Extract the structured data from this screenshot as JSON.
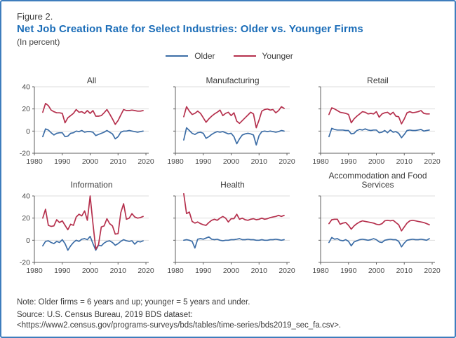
{
  "figure": {
    "label": "Figure 2.",
    "title": "Net Job Creation Rate for Select Industries: Older vs. Younger Firms",
    "subtitle": "(In percent)"
  },
  "legend": {
    "older_label": "Older",
    "younger_label": "Younger"
  },
  "colors": {
    "older": "#3c6da6",
    "younger": "#b5304d",
    "grid": "#dedede",
    "axis": "#5f5f5f",
    "tick_text": "#4a4a4a",
    "border": "#3e7dbd",
    "title_blue": "#1b6db8"
  },
  "footer": {
    "note_line": "Note: Older firms = 6 years and up; younger = 5 years and under.",
    "source_line": "Source: U.S. Census Bureau, 2019 BDS dataset:",
    "url_line": "<https://www2.census.gov/programs-surveys/bds/tables/time-series/bds2019_sec_fa.csv>."
  },
  "chart_data": [
    {
      "type": "line",
      "title": "All",
      "start_year": 1983,
      "end_year": 2019,
      "x_ticks": [
        1980,
        1990,
        2000,
        2010,
        2020
      ],
      "y_ticks": [
        -20,
        0,
        20,
        40
      ],
      "ylim": [
        -20,
        40
      ],
      "show_y_labels": true,
      "series": [
        {
          "name": "Older",
          "color_key": "older",
          "values": [
            -5,
            2,
            1,
            -1.5,
            -3.5,
            -2,
            -1.5,
            -1.5,
            -5,
            -4.5,
            -2,
            -1.5,
            0,
            -0.5,
            0.5,
            -1,
            -0.5,
            -0.5,
            -1,
            -4,
            -3,
            -2,
            -1,
            0.5,
            -1,
            -2.5,
            -7,
            -5,
            -1,
            0,
            0,
            0.5,
            0,
            -0.5,
            -1,
            -0.5,
            0
          ]
        },
        {
          "name": "Younger",
          "color_key": "younger",
          "values": [
            17,
            25,
            23,
            19,
            17.5,
            16.5,
            16.5,
            16,
            7.5,
            12,
            14,
            16,
            19.5,
            17,
            17.5,
            16,
            18.5,
            16,
            18.5,
            13.5,
            13.5,
            14,
            16.5,
            19.5,
            15.5,
            11,
            6,
            9.5,
            14.5,
            19.5,
            18.5,
            18.5,
            19,
            18.5,
            18,
            18,
            18.5
          ]
        }
      ]
    },
    {
      "type": "line",
      "title": "Manufacturing",
      "start_year": 1983,
      "end_year": 2019,
      "x_ticks": [
        1980,
        1990,
        2000,
        2010,
        2020
      ],
      "y_ticks": [
        -20,
        0,
        20,
        40
      ],
      "ylim": [
        -20,
        40
      ],
      "show_y_labels": false,
      "series": [
        {
          "name": "Older",
          "color_key": "older",
          "values": [
            -8,
            3,
            0.5,
            -2,
            -3,
            -1.5,
            -1,
            -2,
            -6.5,
            -5,
            -3,
            -1.5,
            -0.5,
            -1,
            -0.5,
            -1.5,
            -2.5,
            -2,
            -5,
            -11.5,
            -7,
            -3.5,
            -2.5,
            -2,
            -2.5,
            -3.5,
            -12.5,
            -4,
            -0.5,
            0,
            -0.5,
            0,
            -0.5,
            -1,
            -0.5,
            0.5,
            0
          ]
        },
        {
          "name": "Younger",
          "color_key": "younger",
          "values": [
            13,
            22,
            18,
            15,
            16,
            18,
            16,
            12,
            8,
            11,
            13.5,
            15.5,
            17,
            19,
            14,
            16,
            17,
            14,
            16.5,
            9,
            7,
            9.5,
            12,
            14.5,
            17,
            15.5,
            3,
            10,
            18,
            19.5,
            20,
            19,
            19.5,
            16.5,
            18.5,
            22,
            20.5
          ]
        }
      ]
    },
    {
      "type": "line",
      "title": "Retail",
      "start_year": 1983,
      "end_year": 2019,
      "x_ticks": [
        1980,
        1990,
        2000,
        2010,
        2020
      ],
      "y_ticks": [
        -20,
        0,
        20,
        40
      ],
      "ylim": [
        -20,
        40
      ],
      "show_y_labels": false,
      "series": [
        {
          "name": "Older",
          "color_key": "older",
          "values": [
            -5,
            2.5,
            1.5,
            1,
            1,
            1,
            0.5,
            0.5,
            -2.5,
            -2,
            0.5,
            1.5,
            1,
            2,
            1,
            0.5,
            1,
            1,
            -1.5,
            -1,
            0.5,
            -1.5,
            1,
            -1,
            -0.5,
            -2,
            -6,
            -3,
            0.5,
            1,
            0.5,
            0.5,
            1,
            1.5,
            0,
            0.5,
            1
          ]
        },
        {
          "name": "Younger",
          "color_key": "younger",
          "values": [
            15,
            21,
            20,
            18.5,
            17,
            16.5,
            16,
            15,
            7.5,
            11,
            13.5,
            15.5,
            17.5,
            17,
            15.5,
            16,
            15.5,
            17.5,
            12.5,
            15.5,
            16.5,
            17,
            15,
            17,
            13.5,
            13,
            6.5,
            11,
            16.5,
            17.5,
            16.5,
            17,
            17.5,
            18.5,
            16,
            15.5,
            15.5
          ]
        }
      ]
    },
    {
      "type": "line",
      "title": "Information",
      "start_year": 1983,
      "end_year": 2019,
      "x_ticks": [
        1980,
        1990,
        2000,
        2010,
        2020
      ],
      "y_ticks": [
        -20,
        0,
        20,
        40
      ],
      "ylim": [
        -20,
        40
      ],
      "show_y_labels": true,
      "series": [
        {
          "name": "Older",
          "color_key": "older",
          "values": [
            -5,
            -1,
            -0.5,
            -2,
            -3,
            -1,
            -2,
            0.5,
            -3,
            -9,
            -5,
            -2,
            0,
            -1,
            1,
            1.5,
            0.5,
            3.5,
            -3,
            -9,
            -4.5,
            -5,
            -2.5,
            -1,
            -0.5,
            -2,
            -4.5,
            -3,
            -1,
            0.5,
            -0.5,
            -1,
            -0.5,
            -3.5,
            -1,
            -1.5,
            -0.5
          ]
        },
        {
          "name": "Younger",
          "color_key": "younger",
          "values": [
            20,
            28,
            13.5,
            12.5,
            13,
            18.5,
            16,
            17.5,
            13.5,
            9.5,
            14.5,
            13.5,
            21,
            23.5,
            22,
            26.5,
            18,
            40,
            15,
            -8,
            -4,
            12,
            13,
            19.5,
            15,
            13,
            5.5,
            6,
            25,
            33,
            19,
            20,
            24,
            21,
            20,
            20.5,
            21.5
          ]
        }
      ]
    },
    {
      "type": "line",
      "title": "Health",
      "start_year": 1983,
      "end_year": 2019,
      "x_ticks": [
        1980,
        1990,
        2000,
        2010,
        2020
      ],
      "y_ticks": [
        -20,
        0,
        20,
        40
      ],
      "ylim": [
        -20,
        40
      ],
      "show_y_labels": false,
      "series": [
        {
          "name": "Older",
          "color_key": "older",
          "values": [
            0,
            0.5,
            0,
            -1,
            -7,
            1,
            1.5,
            1,
            2,
            3,
            1,
            0.5,
            1,
            0,
            -0.5,
            0,
            0,
            0.5,
            0.5,
            1,
            1.5,
            0.5,
            0.5,
            1,
            0.5,
            0.5,
            0,
            0,
            0.5,
            0,
            0,
            0.5,
            0.5,
            1,
            0.5,
            0,
            0.5
          ]
        },
        {
          "name": "Younger",
          "color_key": "younger",
          "values": [
            42,
            24,
            25.5,
            17,
            15.5,
            16.5,
            15,
            14,
            13.5,
            16,
            18,
            19,
            18,
            20,
            21.5,
            20,
            16.5,
            19.5,
            19.5,
            23.5,
            19,
            20,
            18.5,
            18,
            19,
            19.5,
            18.5,
            19,
            20,
            19,
            19.5,
            20.5,
            21,
            21.5,
            22.5,
            21.5,
            22.5
          ]
        }
      ]
    },
    {
      "type": "line",
      "title": "Accommodation and Food Services",
      "start_year": 1983,
      "end_year": 2019,
      "x_ticks": [
        1980,
        1990,
        2000,
        2010,
        2020
      ],
      "y_ticks": [
        -20,
        0,
        20,
        40
      ],
      "ylim": [
        -20,
        40
      ],
      "show_y_labels": false,
      "series": [
        {
          "name": "Older",
          "color_key": "older",
          "values": [
            -2,
            2.5,
            1,
            1.5,
            0,
            -0.5,
            0.5,
            -1,
            -5,
            -1.5,
            -0.5,
            0.5,
            1,
            0.5,
            0,
            0.5,
            1.5,
            0.5,
            -1.5,
            -2,
            0,
            0.5,
            1,
            0.5,
            0.5,
            -1,
            -6,
            -2.5,
            0,
            0.5,
            1,
            0.5,
            0.5,
            1,
            0.5,
            0,
            1.5
          ]
        },
        {
          "name": "Younger",
          "color_key": "younger",
          "values": [
            15,
            18.5,
            19,
            19,
            14.5,
            15.5,
            16,
            13.5,
            10,
            13,
            15,
            16.5,
            17.5,
            17,
            16.5,
            16,
            15.5,
            14.5,
            14,
            15,
            17.5,
            18,
            17.5,
            18,
            16,
            14,
            8.5,
            12,
            15.5,
            17.5,
            18,
            17.5,
            17,
            16.5,
            16,
            15,
            14
          ]
        }
      ]
    }
  ]
}
